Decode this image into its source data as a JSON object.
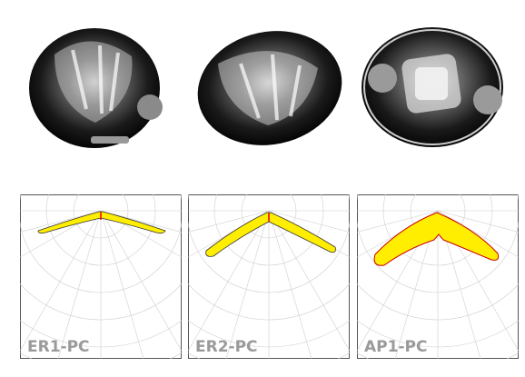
{
  "products": [
    {
      "label": "ER1-PC"
    },
    {
      "label": "ER2-PC"
    },
    {
      "label": "AP1-PC"
    }
  ]
}
